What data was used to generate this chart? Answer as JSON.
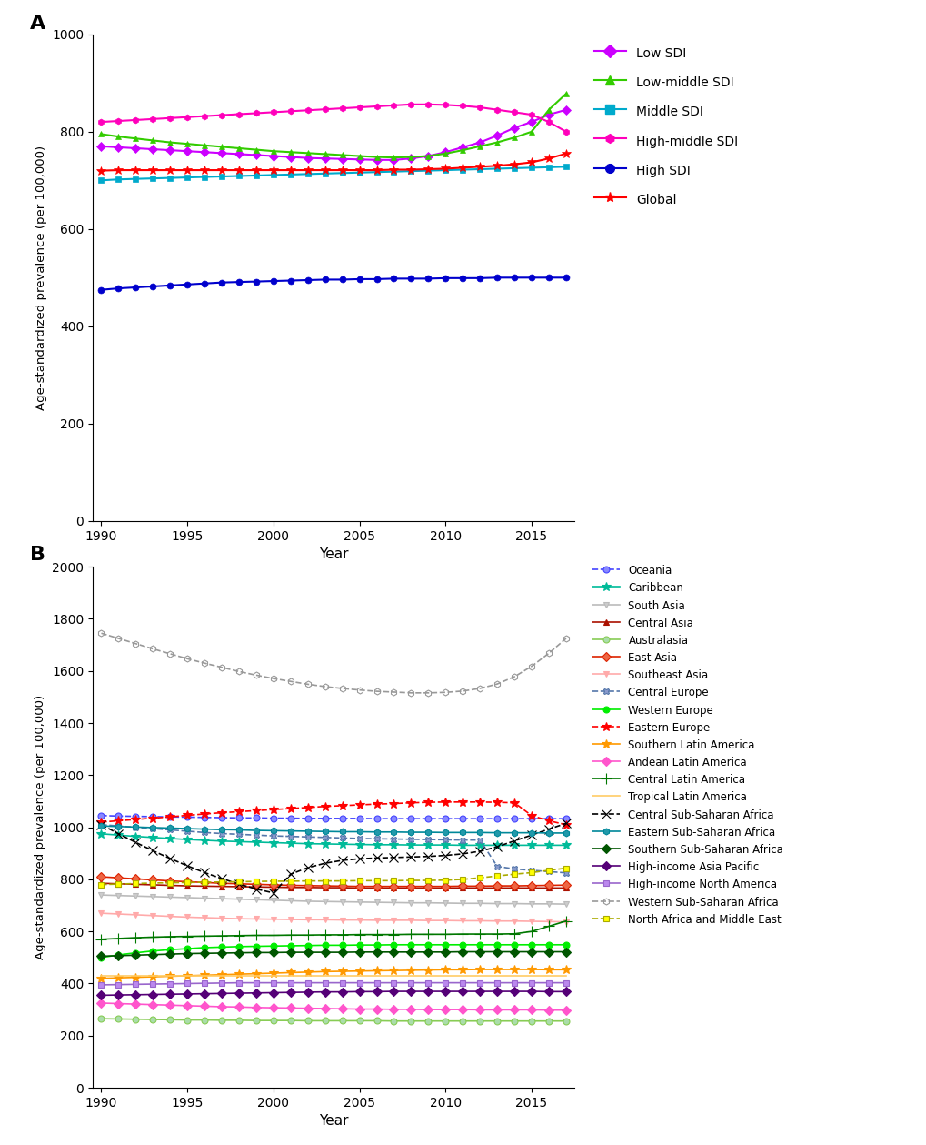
{
  "years": [
    1990,
    1991,
    1992,
    1993,
    1994,
    1995,
    1996,
    1997,
    1998,
    1999,
    2000,
    2001,
    2002,
    2003,
    2004,
    2005,
    2006,
    2007,
    2008,
    2009,
    2010,
    2011,
    2012,
    2013,
    2014,
    2015,
    2016,
    2017
  ],
  "panel_A": {
    "Low SDI": [
      770,
      768,
      766,
      764,
      762,
      760,
      758,
      756,
      754,
      752,
      750,
      748,
      746,
      745,
      744,
      743,
      742,
      742,
      745,
      750,
      758,
      768,
      778,
      792,
      808,
      820,
      835,
      845
    ],
    "Low-middle SDI": [
      795,
      790,
      786,
      782,
      778,
      775,
      772,
      769,
      766,
      763,
      760,
      758,
      756,
      754,
      752,
      750,
      748,
      747,
      748,
      750,
      755,
      762,
      770,
      778,
      788,
      800,
      845,
      878
    ],
    "Middle SDI": [
      700,
      702,
      703,
      704,
      705,
      706,
      707,
      708,
      709,
      710,
      711,
      712,
      713,
      714,
      715,
      716,
      717,
      718,
      719,
      720,
      721,
      722,
      723,
      724,
      725,
      726,
      727,
      728
    ],
    "High-middle SDI": [
      820,
      822,
      824,
      826,
      828,
      830,
      832,
      834,
      836,
      838,
      840,
      842,
      844,
      846,
      848,
      850,
      852,
      854,
      856,
      856,
      855,
      853,
      850,
      845,
      840,
      835,
      820,
      800
    ],
    "High SDI": [
      475,
      478,
      480,
      482,
      484,
      486,
      488,
      490,
      491,
      492,
      493,
      494,
      495,
      496,
      496,
      497,
      497,
      498,
      498,
      498,
      499,
      499,
      499,
      500,
      500,
      500,
      500,
      500
    ],
    "Global": [
      720,
      721,
      721,
      721,
      721,
      721,
      721,
      721,
      721,
      721,
      721,
      721,
      721,
      721,
      721,
      721,
      721,
      722,
      722,
      723,
      724,
      726,
      728,
      730,
      733,
      737,
      745,
      755
    ]
  },
  "panel_A_styles": {
    "Low SDI": {
      "color": "#CC00FF",
      "marker": "D",
      "linestyle": "-",
      "mfc": "#CC00FF"
    },
    "Low-middle SDI": {
      "color": "#33CC00",
      "marker": "^",
      "linestyle": "-",
      "mfc": "#33CC00"
    },
    "Middle SDI": {
      "color": "#00AACC",
      "marker": "s",
      "linestyle": "-",
      "mfc": "#00AACC"
    },
    "High-middle SDI": {
      "color": "#FF00BB",
      "marker": "h",
      "linestyle": "-",
      "mfc": "#FF00BB"
    },
    "High SDI": {
      "color": "#0000CC",
      "marker": "o",
      "linestyle": "-",
      "mfc": "#0000CC"
    },
    "Global": {
      "color": "#FF0000",
      "marker": "*",
      "linestyle": "-",
      "mfc": "#FF0000"
    }
  },
  "panel_B": {
    "Oceania": [
      1045,
      1043,
      1042,
      1041,
      1040,
      1039,
      1038,
      1037,
      1036,
      1036,
      1035,
      1035,
      1034,
      1034,
      1034,
      1034,
      1033,
      1033,
      1033,
      1033,
      1033,
      1033,
      1033,
      1033,
      1033,
      1033,
      1033,
      1033
    ],
    "Caribbean": [
      975,
      970,
      965,
      961,
      957,
      953,
      950,
      947,
      945,
      943,
      941,
      939,
      937,
      936,
      935,
      934,
      933,
      933,
      932,
      932,
      932,
      931,
      931,
      931,
      931,
      931,
      931,
      931
    ],
    "South Asia": [
      740,
      738,
      736,
      734,
      732,
      730,
      728,
      726,
      724,
      722,
      720,
      718,
      716,
      715,
      714,
      713,
      712,
      711,
      710,
      710,
      709,
      708,
      708,
      707,
      707,
      706,
      706,
      705
    ],
    "Central Asia": [
      785,
      783,
      781,
      779,
      777,
      775,
      774,
      773,
      772,
      771,
      770,
      769,
      769,
      768,
      768,
      767,
      767,
      767,
      767,
      767,
      767,
      767,
      767,
      767,
      767,
      767,
      767,
      767
    ],
    "Australasia": [
      265,
      264,
      263,
      262,
      261,
      260,
      260,
      259,
      259,
      258,
      258,
      258,
      257,
      257,
      257,
      257,
      257,
      256,
      256,
      256,
      256,
      256,
      256,
      256,
      256,
      256,
      256,
      256
    ],
    "East Asia": [
      810,
      806,
      802,
      798,
      794,
      791,
      788,
      785,
      783,
      781,
      779,
      777,
      776,
      775,
      774,
      773,
      773,
      773,
      773,
      773,
      773,
      774,
      774,
      775,
      775,
      776,
      777,
      778
    ],
    "Southeast Asia": [
      670,
      667,
      664,
      661,
      658,
      655,
      653,
      651,
      649,
      648,
      647,
      646,
      645,
      645,
      644,
      644,
      643,
      643,
      643,
      642,
      642,
      641,
      641,
      640,
      640,
      639,
      638,
      637
    ],
    "Central Europe": [
      1010,
      1005,
      1000,
      995,
      990,
      985,
      980,
      976,
      973,
      970,
      967,
      965,
      963,
      961,
      959,
      957,
      956,
      955,
      954,
      953,
      952,
      951,
      951,
      850,
      840,
      835,
      830,
      825
    ],
    "Western Europe": [
      500,
      510,
      518,
      525,
      530,
      534,
      538,
      540,
      542,
      543,
      544,
      545,
      546,
      547,
      547,
      548,
      548,
      549,
      549,
      549,
      549,
      549,
      549,
      549,
      549,
      549,
      549,
      549
    ],
    "Eastern Europe": [
      1020,
      1025,
      1030,
      1035,
      1040,
      1046,
      1051,
      1056,
      1060,
      1064,
      1068,
      1072,
      1076,
      1080,
      1083,
      1086,
      1089,
      1091,
      1094,
      1096,
      1097,
      1097,
      1097,
      1096,
      1094,
      1045,
      1025,
      1010
    ],
    "Southern Latin America": [
      420,
      422,
      424,
      426,
      428,
      430,
      432,
      434,
      436,
      438,
      440,
      442,
      444,
      446,
      447,
      448,
      449,
      450,
      451,
      452,
      453,
      453,
      454,
      454,
      454,
      454,
      453,
      453
    ],
    "Andean Latin America": [
      325,
      323,
      321,
      319,
      317,
      315,
      313,
      311,
      310,
      308,
      307,
      306,
      305,
      304,
      303,
      302,
      302,
      301,
      301,
      300,
      300,
      300,
      299,
      299,
      299,
      299,
      298,
      298
    ],
    "Central Latin America": [
      570,
      573,
      576,
      578,
      580,
      581,
      582,
      583,
      584,
      585,
      585,
      586,
      586,
      587,
      587,
      588,
      588,
      588,
      589,
      589,
      589,
      590,
      590,
      590,
      591,
      600,
      620,
      640
    ],
    "Tropical Latin America": [
      430,
      430,
      430,
      430,
      430,
      430,
      430,
      430,
      430,
      430,
      430,
      430,
      430,
      430,
      430,
      430,
      430,
      430,
      430,
      430,
      430,
      430,
      430,
      430,
      430,
      430,
      430,
      430
    ],
    "Central Sub-Saharan Africa": [
      1010,
      975,
      942,
      910,
      880,
      852,
      826,
      803,
      782,
      763,
      748,
      820,
      845,
      862,
      873,
      879,
      882,
      884,
      886,
      888,
      892,
      898,
      908,
      925,
      948,
      970,
      993,
      1015
    ],
    "Eastern Sub-Saharan Africa": [
      1005,
      1003,
      1001,
      999,
      997,
      995,
      993,
      991,
      990,
      988,
      987,
      986,
      985,
      984,
      983,
      983,
      982,
      982,
      981,
      981,
      980,
      980,
      980,
      979,
      979,
      979,
      978,
      978
    ],
    "Southern Sub-Saharan Africa": [
      505,
      507,
      509,
      511,
      513,
      515,
      516,
      517,
      518,
      519,
      519,
      520,
      520,
      520,
      520,
      521,
      521,
      521,
      521,
      521,
      521,
      522,
      522,
      522,
      522,
      522,
      522,
      522
    ],
    "High-income Asia Pacific": [
      355,
      356,
      357,
      358,
      359,
      360,
      361,
      362,
      363,
      364,
      365,
      366,
      367,
      368,
      368,
      369,
      369,
      370,
      370,
      370,
      370,
      370,
      370,
      370,
      370,
      370,
      369,
      369
    ],
    "High-income North America": [
      395,
      396,
      397,
      398,
      399,
      400,
      401,
      402,
      403,
      403,
      403,
      403,
      403,
      403,
      403,
      403,
      403,
      403,
      403,
      403,
      403,
      403,
      403,
      403,
      403,
      403,
      403,
      403
    ],
    "Western Sub-Saharan Africa": [
      1745,
      1725,
      1705,
      1685,
      1666,
      1647,
      1630,
      1614,
      1598,
      1584,
      1571,
      1560,
      1549,
      1540,
      1533,
      1527,
      1522,
      1519,
      1516,
      1516,
      1518,
      1523,
      1533,
      1550,
      1578,
      1618,
      1668,
      1725
    ],
    "North Africa and Middle East": [
      780,
      782,
      784,
      786,
      787,
      788,
      789,
      790,
      791,
      792,
      793,
      793,
      794,
      794,
      794,
      795,
      795,
      795,
      796,
      796,
      797,
      800,
      806,
      813,
      820,
      826,
      835,
      843
    ]
  },
  "panel_B_styles": {
    "Oceania": {
      "color": "#4444FF",
      "marker": "o",
      "linestyle": "--",
      "mfc": "#8888FF"
    },
    "Caribbean": {
      "color": "#00BB99",
      "marker": "*",
      "linestyle": "-",
      "mfc": "#00BB99"
    },
    "South Asia": {
      "color": "#BBBBBB",
      "marker": "v",
      "linestyle": "-",
      "mfc": "#CCCCCC"
    },
    "Central Asia": {
      "color": "#AA1100",
      "marker": "^",
      "linestyle": "-",
      "mfc": "#AA1100"
    },
    "Australasia": {
      "color": "#88CC55",
      "marker": "o",
      "linestyle": "-",
      "mfc": "#AADDAA"
    },
    "East Asia": {
      "color": "#DD2200",
      "marker": "D",
      "linestyle": "-",
      "mfc": "#EE6644"
    },
    "Southeast Asia": {
      "color": "#FFAAAA",
      "marker": "v",
      "linestyle": "-",
      "mfc": "#FFAAAA"
    },
    "Central Europe": {
      "color": "#5577AA",
      "marker": "X",
      "linestyle": "--",
      "mfc": "#8899CC"
    },
    "Western Europe": {
      "color": "#00EE00",
      "marker": "o",
      "linestyle": "-",
      "mfc": "#00EE00"
    },
    "Eastern Europe": {
      "color": "#FF0000",
      "marker": "*",
      "linestyle": "--",
      "mfc": "#FF0000"
    },
    "Southern Latin America": {
      "color": "#FF9900",
      "marker": "*",
      "linestyle": "-",
      "mfc": "#FF9900"
    },
    "Andean Latin America": {
      "color": "#FF55CC",
      "marker": "D",
      "linestyle": "-",
      "mfc": "#FF55CC"
    },
    "Central Latin America": {
      "color": "#007700",
      "marker": "+",
      "linestyle": "-",
      "mfc": "#007700"
    },
    "Tropical Latin America": {
      "color": "#FFCC66",
      "marker": "None",
      "linestyle": "-",
      "mfc": "#FFCC66"
    },
    "Central Sub-Saharan Africa": {
      "color": "#000000",
      "marker": "x",
      "linestyle": "--",
      "mfc": "#000000"
    },
    "Eastern Sub-Saharan Africa": {
      "color": "#008899",
      "marker": "h",
      "linestyle": "-",
      "mfc": "#2299AA"
    },
    "Southern Sub-Saharan Africa": {
      "color": "#005500",
      "marker": "D",
      "linestyle": "-",
      "mfc": "#005500"
    },
    "High-income Asia Pacific": {
      "color": "#550077",
      "marker": "D",
      "linestyle": "-",
      "mfc": "#550077"
    },
    "High-income North America": {
      "color": "#9966CC",
      "marker": "s",
      "linestyle": "-",
      "mfc": "#BB88EE"
    },
    "Western Sub-Saharan Africa": {
      "color": "#999999",
      "marker": "h",
      "linestyle": "--",
      "mfc": "none"
    },
    "North Africa and Middle East": {
      "color": "#AAAA00",
      "marker": "s",
      "linestyle": "--",
      "mfc": "#FFFF00"
    }
  },
  "panel_A_ylim": [
    0,
    1000
  ],
  "panel_A_yticks": [
    0,
    200,
    400,
    600,
    800,
    1000
  ],
  "panel_B_ylim": [
    0,
    2000
  ],
  "panel_B_yticks": [
    0,
    200,
    400,
    600,
    800,
    1000,
    1200,
    1400,
    1600,
    1800,
    2000
  ],
  "xlabel": "Year",
  "ylabel_A": "Age-standardized prevalence (per 100,000)",
  "ylabel_B": "Age-standardized prevalence (per 100,000)",
  "xlim": [
    1989.5,
    2017.5
  ],
  "xticks": [
    1990,
    1995,
    2000,
    2005,
    2010,
    2015
  ]
}
